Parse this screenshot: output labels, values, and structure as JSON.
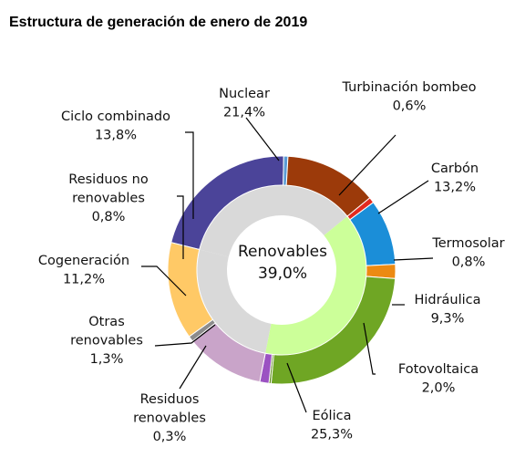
{
  "chart_data": {
    "type": "pie",
    "title": "Estructura de generación de enero de 2019",
    "center_label": {
      "name": "Renovables",
      "value": "39,0%"
    },
    "series": [
      {
        "name": "Nuclear",
        "value": 21.4,
        "label_lines": [
          "Nuclear",
          "21,4%"
        ],
        "color": "#4B4499",
        "renewable": false
      },
      {
        "name": "Turbinación bombeo",
        "value": 0.6,
        "label_lines": [
          "Turbinación bombeo",
          "0,6%"
        ],
        "color": "#5B9BD5",
        "renewable": false
      },
      {
        "name": "Carbón",
        "value": 13.2,
        "label_lines": [
          "Carbón",
          "13,2%"
        ],
        "color": "#9C3A0A",
        "renewable": false
      },
      {
        "name": "Termosolar",
        "value": 0.8,
        "label_lines": [
          "Termosolar",
          "0,8%"
        ],
        "color": "#E32A1E",
        "renewable": true
      },
      {
        "name": "Hidráulica",
        "value": 9.3,
        "label_lines": [
          "Hidráulica",
          "9,3%"
        ],
        "color": "#1B8ED8",
        "renewable": true
      },
      {
        "name": "Fotovoltaica",
        "value": 2.0,
        "label_lines": [
          "Fotovoltaica",
          "2,0%"
        ],
        "color": "#EC8A12",
        "renewable": true
      },
      {
        "name": "Eólica",
        "value": 25.3,
        "label_lines": [
          "Eólica",
          "25,3%"
        ],
        "color": "#6FA624",
        "renewable": true
      },
      {
        "name": "Residuos renovables",
        "value": 0.3,
        "label_lines": [
          "Residuos",
          "renovables",
          "0,3%"
        ],
        "color": "#5C8A1A",
        "renewable": true
      },
      {
        "name": "Otras renovables",
        "value": 1.3,
        "label_lines": [
          "Otras",
          "renovables",
          "1,3%"
        ],
        "color": "#9B52C2",
        "renewable": true
      },
      {
        "name": "Cogeneración",
        "value": 11.2,
        "label_lines": [
          "Cogeneración",
          "11,2%"
        ],
        "color": "#C9A4C9",
        "renewable": false
      },
      {
        "name": "Residuos no renovables",
        "value": 0.8,
        "label_lines": [
          "Residuos no",
          "renovables",
          "0,8%"
        ],
        "color": "#8C8C8C",
        "renewable": false
      },
      {
        "name": "Ciclo combinado",
        "value": 13.8,
        "label_lines": [
          "Ciclo combinado",
          "13,8%"
        ],
        "color": "#FFC966",
        "renewable": false
      }
    ],
    "inner_colors": {
      "renewable": "#CCFF99",
      "non_renewable": "#D9D9D9"
    }
  }
}
